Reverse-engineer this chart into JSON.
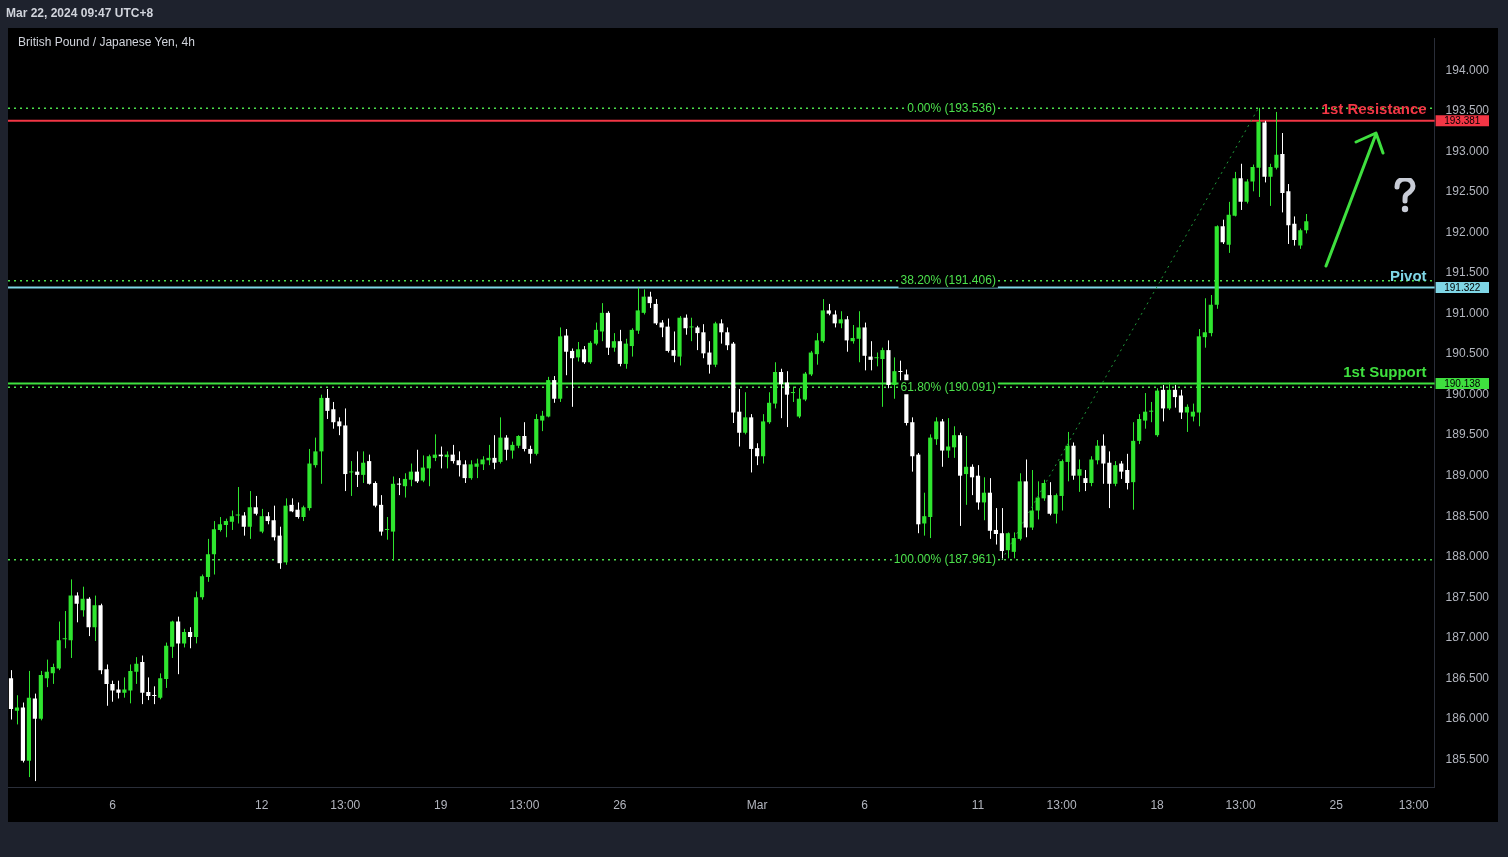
{
  "chart_data": {
    "type": "candlestick",
    "title": "British Pound / Japanese Yen, 4h",
    "subtitle": "Mar 22, 2024 09:47 UTC+8",
    "categories": [
      null,
      null,
      null,
      null,
      null,
      null,
      null,
      null,
      null,
      null,
      null,
      null,
      null,
      null,
      null,
      null,
      null,
      "6",
      null,
      null,
      null,
      null,
      null,
      null,
      null,
      null,
      null,
      null,
      null,
      null,
      null,
      null,
      null,
      null,
      null,
      null,
      null,
      null,
      null,
      null,
      null,
      null,
      "12",
      null,
      null,
      null,
      null,
      null,
      null,
      null,
      null,
      null,
      null,
      null,
      null,
      null,
      "13:00",
      null,
      null,
      null,
      null,
      null,
      null,
      null,
      null,
      null,
      null,
      null,
      null,
      null,
      null,
      null,
      "19",
      null,
      null,
      null,
      null,
      null,
      null,
      null,
      null,
      null,
      null,
      null,
      null,
      null,
      "13:00",
      null,
      null,
      null,
      null,
      null,
      null,
      null,
      null,
      null,
      null,
      null,
      null,
      null,
      null,
      null,
      "26",
      null,
      null,
      null,
      null,
      null,
      null,
      null,
      null,
      null,
      null,
      null,
      null,
      null,
      null,
      null,
      null,
      null,
      null,
      null,
      null,
      null,
      null,
      "Mar",
      null,
      null,
      null,
      null,
      null,
      null,
      null,
      null,
      null,
      null,
      null,
      null,
      null,
      null,
      null,
      null,
      null,
      "6",
      null,
      null,
      null,
      null,
      null,
      null,
      null,
      null,
      null,
      null,
      null,
      null,
      null,
      null,
      null,
      null,
      null,
      null,
      "11",
      null,
      null,
      null,
      null,
      null,
      null,
      null,
      null,
      null,
      null,
      null,
      null,
      null,
      "13:00",
      null,
      null,
      null,
      null,
      null,
      null,
      null,
      null,
      null,
      null,
      null,
      null,
      null,
      null,
      null,
      "18",
      null,
      null,
      null,
      null,
      null,
      null,
      null,
      null,
      null,
      null,
      null,
      null,
      null,
      "13:00",
      null,
      null,
      null,
      null,
      null,
      null,
      null,
      null,
      null,
      null,
      null,
      null,
      null,
      null,
      null,
      "25",
      null,
      null,
      null,
      null,
      null,
      null,
      null,
      null,
      null,
      null,
      null,
      null,
      "13:00",
      null,
      null,
      null
    ],
    "annotations": [
      "193.381",
      "191.322",
      "190.138"
    ],
    "colors": [
      "#ffffff",
      "#2fe52f",
      "#ffffff",
      "#2fe52f",
      "#ffffff",
      "#2fe52f",
      "#2fe52f",
      "#2fe52f",
      "#2fe52f",
      "#2fe52f",
      "#2fe52f",
      "#ffffff",
      "#2fe52f",
      "#ffffff",
      "#2fe52f",
      "#ffffff",
      "#ffffff",
      "#ffffff",
      "#ffffff",
      "#2fe52f",
      "#2fe52f",
      "#2fe52f",
      "#ffffff",
      "#ffffff",
      "#ffffff",
      "#2fe52f",
      "#2fe52f",
      "#2fe52f",
      "#ffffff",
      "#2fe52f",
      "#ffffff",
      "#2fe52f",
      "#2fe52f",
      "#2fe52f",
      "#2fe52f",
      "#2fe52f",
      "#2fe52f",
      "#2fe52f",
      "#2fe52f",
      "#ffffff",
      "#2fe52f",
      "#ffffff",
      "#2fe52f",
      "#ffffff",
      "#ffffff",
      "#ffffff",
      "#2fe52f",
      "#ffffff",
      "#ffffff",
      "#2fe52f",
      "#2fe52f",
      "#2fe52f",
      "#2fe52f",
      "#ffffff",
      "#ffffff",
      "#ffffff",
      "#ffffff",
      "#2fe52f",
      "#ffffff",
      "#2fe52f",
      "#ffffff",
      "#ffffff",
      "#ffffff",
      "#2fe52f",
      "#2fe52f",
      "#ffffff",
      "#2fe52f",
      "#2fe52f",
      "#ffffff",
      "#2fe52f",
      "#2fe52f",
      "#2fe52f",
      "#ffffff",
      "#2fe52f",
      "#ffffff",
      "#ffffff",
      "#ffffff",
      "#2fe52f",
      "#2fe52f",
      "#2fe52f",
      "#2fe52f",
      "#ffffff",
      "#2fe52f",
      "#ffffff",
      "#2fe52f",
      "#2fe52f",
      "#ffffff",
      "#ffffff",
      "#2fe52f",
      "#2fe52f",
      "#2fe52f",
      "#ffffff",
      "#2fe52f",
      "#ffffff",
      "#ffffff",
      "#2fe52f",
      "#ffffff",
      "#2fe52f",
      "#2fe52f",
      "#2fe52f",
      "#ffffff",
      "#2fe52f",
      "#ffffff",
      "#2fe52f",
      "#2fe52f",
      "#2fe52f",
      "#2fe52f",
      "#ffffff",
      "#ffffff",
      "#ffffff",
      "#ffffff",
      "#ffffff",
      "#2fe52f",
      "#ffffff",
      "#2fe52f",
      "#ffffff",
      "#ffffff",
      "#ffffff",
      "#2fe52f",
      "#ffffff",
      "#ffffff",
      "#ffffff",
      "#ffffff",
      "#2fe52f",
      "#ffffff",
      "#ffffff",
      "#2fe52f",
      "#2fe52f",
      "#2fe52f",
      "#ffffff",
      "#ffffff",
      "#2fe52f",
      "#2fe52f",
      "#2fe52f",
      "#2fe52f",
      "#2fe52f",
      "#2fe52f",
      "#ffffff",
      "#ffffff",
      "#2fe52f",
      "#ffffff",
      "#2fe52f",
      "#2fe52f",
      "#ffffff",
      "#ffffff",
      "#2fe52f",
      "#2fe52f",
      "#ffffff",
      "#2fe52f",
      "#ffffff",
      "#ffffff",
      "#ffffff",
      "#ffffff",
      "#2fe52f",
      "#2fe52f",
      "#2fe52f",
      "#ffffff",
      "#2fe52f",
      "#2fe52f",
      "#ffffff",
      "#2fe52f",
      "#ffffff",
      "#ffffff",
      "#2fe52f",
      "#ffffff",
      "#ffffff",
      "#ffffff",
      "#2fe52f",
      "#2fe52f",
      "#2fe52f",
      "#ffffff",
      "#2fe52f",
      "#2fe52f",
      "#2fe52f",
      "#ffffff",
      "#2fe52f",
      "#2fe52f",
      "#2fe52f",
      "#ffffff",
      "#2fe52f",
      "#ffffff",
      "#2fe52f",
      "#2fe52f",
      "#ffffff",
      "#ffffff",
      "#2fe52f",
      "#ffffff",
      "#ffffff",
      "#2fe52f",
      "#2fe52f",
      "#2fe52f",
      "#2fe52f",
      "#2fe52f",
      "#ffffff",
      "#2fe52f",
      "#ffffff",
      "#ffffff",
      "#2fe52f",
      "#2fe52f",
      "#2fe52f",
      "#2fe52f",
      "#2fe52f",
      "#2fe52f",
      "#ffffff",
      "#2fe52f",
      "#2fe52f",
      "#ffffff",
      "#2fe52f",
      "#2fe52f",
      "#2fe52f",
      "#ffffff",
      "#2fe52f",
      "#2fe52f",
      "#ffffff",
      "#ffffff",
      "#ffffff",
      "#2fe52f",
      "#2fe52f",
      null,
      null,
      null,
      null,
      null,
      null,
      null,
      null,
      null,
      null,
      null,
      null,
      null,
      null,
      null,
      null,
      null,
      null,
      null,
      null,
      null
    ],
    "ohlc": [
      [
        186.5,
        186.6,
        185.99,
        186.12
      ],
      [
        186.1,
        186.29,
        185.93,
        186.14
      ],
      [
        186.14,
        186.2,
        185.46,
        185.48
      ],
      [
        185.48,
        186.59,
        185.28,
        186.26
      ],
      [
        186.25,
        186.31,
        185.23,
        186.0
      ],
      [
        186.0,
        186.59,
        185.98,
        186.54
      ],
      [
        186.5,
        186.73,
        186.39,
        186.58
      ],
      [
        186.56,
        186.68,
        186.43,
        186.64
      ],
      [
        186.62,
        187.2,
        186.6,
        186.97
      ],
      [
        186.98,
        187.33,
        186.87,
        186.99
      ],
      [
        186.97,
        187.72,
        186.75,
        187.52
      ],
      [
        187.52,
        187.56,
        187.19,
        187.42
      ],
      [
        187.34,
        187.63,
        187.26,
        187.48
      ],
      [
        187.48,
        187.5,
        187.02,
        187.13
      ],
      [
        187.13,
        187.52,
        186.96,
        187.4
      ],
      [
        187.4,
        187.42,
        186.55,
        186.6
      ],
      [
        186.61,
        186.67,
        186.16,
        186.43
      ],
      [
        186.43,
        186.47,
        186.21,
        186.35
      ],
      [
        186.36,
        186.47,
        186.25,
        186.32
      ],
      [
        186.32,
        186.51,
        186.26,
        186.36
      ],
      [
        186.35,
        186.67,
        186.19,
        186.59
      ],
      [
        186.58,
        186.76,
        186.43,
        186.68
      ],
      [
        186.7,
        186.78,
        186.18,
        186.32
      ],
      [
        186.33,
        186.51,
        186.23,
        186.28
      ],
      [
        186.29,
        186.4,
        186.18,
        186.28
      ],
      [
        186.26,
        186.56,
        186.24,
        186.5
      ],
      [
        186.49,
        186.94,
        186.38,
        186.9
      ],
      [
        186.89,
        187.21,
        186.75,
        187.2
      ],
      [
        187.2,
        187.26,
        186.55,
        186.93
      ],
      [
        186.93,
        187.11,
        186.88,
        187.07
      ],
      [
        187.07,
        187.13,
        186.87,
        187.01
      ],
      [
        187.01,
        187.57,
        186.93,
        187.5
      ],
      [
        187.5,
        187.78,
        187.47,
        187.76
      ],
      [
        187.75,
        188.22,
        187.69,
        188.03
      ],
      [
        188.03,
        188.44,
        187.78,
        188.34
      ],
      [
        188.33,
        188.49,
        188.31,
        188.4
      ],
      [
        188.39,
        188.47,
        188.24,
        188.44
      ],
      [
        188.43,
        188.57,
        188.33,
        188.5
      ],
      [
        188.51,
        188.86,
        188.41,
        188.52
      ],
      [
        188.51,
        188.55,
        188.26,
        188.37
      ],
      [
        188.37,
        188.81,
        188.22,
        188.61
      ],
      [
        188.61,
        188.75,
        188.51,
        188.53
      ],
      [
        188.31,
        188.59,
        188.29,
        188.5
      ],
      [
        188.5,
        188.55,
        188.4,
        188.44
      ],
      [
        188.45,
        188.63,
        188.2,
        188.24
      ],
      [
        188.26,
        188.37,
        187.85,
        187.92
      ],
      [
        187.93,
        188.72,
        187.9,
        188.63
      ],
      [
        188.64,
        188.72,
        188.55,
        188.56
      ],
      [
        188.58,
        188.67,
        188.47,
        188.49
      ],
      [
        188.49,
        188.63,
        188.44,
        188.61
      ],
      [
        188.6,
        189.33,
        188.57,
        189.15
      ],
      [
        189.13,
        189.47,
        189.1,
        189.3
      ],
      [
        189.3,
        190.0,
        188.9,
        189.96
      ],
      [
        189.96,
        190.07,
        189.7,
        189.8
      ],
      [
        189.82,
        189.91,
        189.58,
        189.66
      ],
      [
        189.67,
        189.72,
        189.5,
        189.61
      ],
      [
        189.62,
        189.83,
        188.81,
        189.02
      ],
      [
        189.04,
        189.18,
        188.75,
        189.05
      ],
      [
        189.05,
        189.3,
        188.86,
        189.01
      ],
      [
        189.01,
        189.3,
        188.91,
        189.16
      ],
      [
        189.18,
        189.26,
        188.89,
        188.9
      ],
      [
        188.91,
        188.93,
        188.61,
        188.63
      ],
      [
        188.64,
        188.76,
        188.26,
        188.31
      ],
      [
        188.33,
        188.49,
        188.21,
        188.34
      ],
      [
        188.31,
        188.99,
        187.95,
        188.9
      ],
      [
        188.9,
        188.97,
        188.76,
        188.89
      ],
      [
        188.87,
        189.03,
        188.73,
        188.96
      ],
      [
        188.95,
        189.15,
        188.87,
        189.05
      ],
      [
        189.05,
        189.32,
        188.91,
        188.93
      ],
      [
        188.94,
        189.25,
        188.92,
        189.1
      ],
      [
        189.09,
        189.26,
        188.87,
        189.24
      ],
      [
        189.22,
        189.51,
        189.18,
        189.26
      ],
      [
        189.26,
        189.36,
        189.09,
        189.24
      ],
      [
        189.23,
        189.3,
        189.09,
        189.26
      ],
      [
        189.26,
        189.38,
        189.15,
        189.18
      ],
      [
        189.19,
        189.3,
        188.99,
        189.13
      ],
      [
        189.14,
        189.19,
        188.91,
        188.97
      ],
      [
        188.97,
        189.19,
        188.95,
        189.14
      ],
      [
        189.11,
        189.21,
        188.97,
        189.15
      ],
      [
        189.14,
        189.24,
        189.07,
        189.2
      ],
      [
        189.19,
        189.38,
        189.13,
        189.22
      ],
      [
        189.22,
        189.5,
        189.08,
        189.16
      ],
      [
        189.17,
        189.72,
        189.15,
        189.47
      ],
      [
        189.47,
        189.5,
        189.19,
        189.32
      ],
      [
        189.31,
        189.42,
        189.21,
        189.38
      ],
      [
        189.37,
        189.5,
        189.34,
        189.49
      ],
      [
        189.49,
        189.66,
        189.3,
        189.33
      ],
      [
        189.33,
        189.37,
        189.15,
        189.27
      ],
      [
        189.27,
        189.76,
        189.25,
        189.7
      ],
      [
        189.68,
        189.8,
        189.55,
        189.74
      ],
      [
        189.73,
        190.22,
        189.72,
        190.18
      ],
      [
        190.18,
        190.23,
        189.9,
        189.95
      ],
      [
        189.95,
        190.83,
        189.91,
        190.72
      ],
      [
        190.73,
        190.81,
        190.24,
        190.53
      ],
      [
        190.54,
        190.57,
        189.85,
        190.45
      ],
      [
        190.46,
        190.65,
        190.41,
        190.56
      ],
      [
        190.56,
        190.6,
        190.38,
        190.4
      ],
      [
        190.4,
        190.66,
        190.38,
        190.64
      ],
      [
        190.63,
        190.89,
        190.61,
        190.8
      ],
      [
        190.78,
        191.13,
        190.66,
        191.01
      ],
      [
        191.01,
        191.03,
        190.49,
        190.58
      ],
      [
        190.58,
        190.76,
        190.53,
        190.66
      ],
      [
        190.66,
        190.8,
        190.35,
        190.38
      ],
      [
        190.38,
        190.69,
        190.32,
        190.63
      ],
      [
        190.6,
        190.82,
        190.47,
        190.8
      ],
      [
        190.79,
        191.32,
        190.75,
        191.04
      ],
      [
        191.01,
        191.3,
        190.99,
        191.21
      ],
      [
        191.21,
        191.27,
        191.07,
        191.13
      ],
      [
        191.12,
        191.18,
        190.86,
        190.88
      ],
      [
        190.89,
        190.92,
        190.71,
        190.83
      ],
      [
        190.84,
        190.94,
        190.52,
        190.54
      ],
      [
        190.55,
        190.78,
        190.4,
        190.48
      ],
      [
        190.47,
        190.97,
        190.36,
        190.95
      ],
      [
        190.95,
        190.99,
        190.74,
        190.82
      ],
      [
        190.83,
        190.95,
        190.66,
        190.84
      ],
      [
        190.83,
        190.85,
        190.55,
        190.76
      ],
      [
        190.77,
        190.87,
        190.45,
        190.51
      ],
      [
        190.52,
        190.66,
        190.26,
        190.37
      ],
      [
        190.37,
        190.9,
        190.34,
        190.88
      ],
      [
        190.88,
        190.93,
        190.63,
        190.77
      ],
      [
        190.77,
        190.83,
        190.55,
        190.61
      ],
      [
        190.63,
        190.65,
        189.65,
        189.78
      ],
      [
        189.79,
        190.07,
        189.36,
        189.53
      ],
      [
        189.53,
        190.03,
        189.51,
        189.72
      ],
      [
        189.72,
        189.76,
        189.04,
        189.33
      ],
      [
        189.34,
        189.4,
        189.13,
        189.24
      ],
      [
        189.24,
        189.76,
        189.15,
        189.67
      ],
      [
        189.66,
        190.03,
        189.64,
        189.9
      ],
      [
        189.89,
        190.4,
        189.83,
        190.28
      ],
      [
        190.28,
        190.32,
        189.71,
        190.13
      ],
      [
        190.15,
        190.29,
        189.6,
        190.0
      ],
      [
        190.02,
        190.1,
        189.91,
        190.03
      ],
      [
        189.73,
        190.08,
        189.71,
        189.95
      ],
      [
        189.94,
        190.28,
        189.92,
        190.26
      ],
      [
        190.25,
        190.54,
        190.23,
        190.52
      ],
      [
        190.5,
        190.76,
        190.37,
        190.67
      ],
      [
        190.66,
        191.18,
        190.64,
        191.04
      ],
      [
        191.04,
        191.12,
        190.98,
        191.0
      ],
      [
        190.99,
        191.04,
        190.83,
        190.88
      ],
      [
        190.88,
        191.03,
        190.82,
        190.93
      ],
      [
        190.93,
        190.97,
        190.53,
        190.67
      ],
      [
        190.66,
        190.86,
        190.63,
        190.7
      ],
      [
        190.69,
        191.03,
        190.4,
        190.83
      ],
      [
        190.83,
        190.89,
        190.3,
        190.48
      ],
      [
        190.47,
        190.66,
        190.3,
        190.43
      ],
      [
        190.45,
        190.52,
        190.35,
        190.46
      ],
      [
        190.44,
        190.58,
        189.85,
        190.55
      ],
      [
        190.55,
        190.67,
        190.08,
        190.12
      ],
      [
        190.12,
        190.46,
        189.95,
        190.29
      ],
      [
        190.29,
        190.42,
        190.15,
        190.28
      ],
      [
        190.25,
        190.31,
        189.62,
        189.65
      ],
      [
        189.66,
        189.72,
        189.05,
        189.24
      ],
      [
        189.26,
        189.28,
        188.29,
        188.4
      ],
      [
        188.41,
        188.79,
        188.26,
        188.5
      ],
      [
        188.49,
        189.51,
        188.23,
        189.47
      ],
      [
        189.45,
        189.72,
        189.38,
        189.67
      ],
      [
        189.67,
        189.7,
        189.11,
        189.31
      ],
      [
        189.31,
        189.71,
        189.22,
        189.36
      ],
      [
        189.35,
        189.61,
        189.22,
        189.5
      ],
      [
        189.5,
        189.53,
        188.38,
        189.0
      ],
      [
        189.02,
        189.49,
        188.64,
        189.11
      ],
      [
        189.11,
        189.14,
        188.76,
        188.98
      ],
      [
        189.0,
        189.13,
        188.58,
        188.67
      ],
      [
        188.67,
        188.98,
        188.45,
        188.79
      ],
      [
        188.79,
        188.97,
        188.22,
        188.32
      ],
      [
        188.33,
        188.6,
        188.15,
        188.28
      ],
      [
        188.29,
        188.6,
        187.96,
        188.07
      ],
      [
        188.08,
        188.3,
        187.98,
        188.29
      ],
      [
        188.06,
        188.3,
        187.98,
        188.23
      ],
      [
        188.22,
        189.03,
        188.2,
        188.93
      ],
      [
        188.93,
        189.2,
        188.24,
        188.36
      ],
      [
        188.36,
        189.07,
        188.33,
        188.57
      ],
      [
        188.57,
        188.93,
        188.46,
        188.73
      ],
      [
        188.72,
        188.95,
        188.69,
        188.91
      ],
      [
        188.76,
        188.92,
        188.51,
        188.53
      ],
      [
        188.53,
        188.78,
        188.41,
        188.76
      ],
      [
        188.75,
        189.2,
        188.57,
        189.18
      ],
      [
        189.17,
        189.54,
        188.93,
        189.37
      ],
      [
        189.37,
        189.41,
        188.95,
        189.0
      ],
      [
        189.0,
        189.2,
        188.8,
        189.08
      ],
      [
        188.97,
        189.07,
        188.81,
        188.91
      ],
      [
        188.91,
        189.24,
        188.87,
        189.2
      ],
      [
        189.19,
        189.44,
        189.14,
        189.37
      ],
      [
        189.37,
        189.51,
        188.9,
        189.15
      ],
      [
        189.16,
        189.3,
        188.6,
        188.9
      ],
      [
        188.9,
        189.18,
        188.87,
        189.13
      ],
      [
        189.15,
        189.18,
        188.96,
        189.05
      ],
      [
        189.07,
        189.27,
        188.83,
        188.91
      ],
      [
        188.92,
        189.66,
        188.58,
        189.43
      ],
      [
        189.43,
        189.76,
        189.39,
        189.7
      ],
      [
        189.68,
        190.02,
        189.58,
        189.79
      ],
      [
        189.79,
        189.91,
        189.66,
        189.8
      ],
      [
        189.5,
        190.08,
        189.48,
        190.05
      ],
      [
        190.06,
        190.12,
        189.67,
        189.83
      ],
      [
        189.83,
        190.15,
        189.81,
        190.06
      ],
      [
        190.06,
        190.12,
        189.84,
        189.97
      ],
      [
        189.99,
        190.06,
        189.7,
        189.78
      ],
      [
        189.78,
        189.88,
        189.54,
        189.85
      ],
      [
        189.73,
        189.89,
        189.67,
        189.79
      ],
      [
        189.78,
        190.81,
        189.61,
        190.72
      ],
      [
        190.71,
        191.19,
        190.58,
        190.77
      ],
      [
        190.76,
        191.23,
        190.72,
        191.11
      ],
      [
        191.11,
        192.09,
        191.06,
        192.08
      ],
      [
        192.08,
        192.16,
        191.86,
        191.88
      ],
      [
        191.85,
        192.38,
        191.75,
        192.22
      ],
      [
        192.21,
        192.75,
        192.2,
        192.67
      ],
      [
        192.67,
        192.85,
        192.28,
        192.38
      ],
      [
        192.38,
        192.66,
        192.36,
        192.63
      ],
      [
        192.63,
        192.84,
        192.51,
        192.81
      ],
      [
        192.8,
        193.54,
        192.44,
        193.37
      ],
      [
        193.36,
        193.38,
        192.62,
        192.69
      ],
      [
        192.69,
        192.85,
        192.33,
        192.81
      ],
      [
        192.8,
        193.49,
        192.78,
        192.96
      ],
      [
        192.97,
        193.23,
        192.25,
        192.49
      ],
      [
        192.51,
        192.6,
        191.86,
        192.09
      ],
      [
        192.11,
        192.2,
        191.84,
        191.91
      ],
      [
        191.84,
        192.05,
        191.8,
        192.03
      ],
      [
        192.03,
        192.23,
        191.99,
        192.14
      ],
      null,
      null,
      null,
      null,
      null,
      null,
      null,
      null,
      null,
      null,
      null,
      null,
      null,
      null,
      null,
      null,
      null,
      null,
      null,
      null,
      null
    ],
    "series": [
      {
        "type": "line",
        "color": "#1f9a3a",
        "line_style": "dotted",
        "values": [
          null,
          null,
          null,
          null,
          null,
          null,
          null,
          null,
          null,
          null,
          null,
          null,
          null,
          null,
          null,
          null,
          null,
          null,
          null,
          null,
          null,
          null,
          null,
          null,
          null,
          null,
          null,
          null,
          null,
          null,
          null,
          null,
          null,
          null,
          null,
          null,
          null,
          null,
          null,
          null,
          null,
          null,
          null,
          null,
          null,
          null,
          null,
          null,
          null,
          null,
          null,
          null,
          null,
          null,
          null,
          null,
          null,
          null,
          null,
          null,
          null,
          null,
          null,
          null,
          null,
          null,
          null,
          null,
          null,
          null,
          null,
          null,
          null,
          null,
          null,
          null,
          null,
          null,
          null,
          null,
          null,
          null,
          null,
          null,
          null,
          null,
          null,
          null,
          null,
          null,
          null,
          null,
          null,
          null,
          null,
          null,
          null,
          null,
          null,
          null,
          null,
          null,
          null,
          null,
          null,
          null,
          null,
          null,
          null,
          null,
          null,
          null,
          null,
          null,
          null,
          null,
          null,
          null,
          null,
          null,
          null,
          null,
          null,
          null,
          null,
          null,
          null,
          null,
          null,
          null,
          null,
          null,
          null,
          null,
          null,
          null,
          null,
          null,
          null,
          null,
          null,
          null,
          null,
          null,
          null,
          null,
          null,
          null,
          null,
          null,
          null,
          null,
          null,
          null,
          null,
          null,
          null,
          null,
          null,
          null,
          null,
          null,
          null,
          null,
          null,
          null,
          187.96,
          null,
          null,
          null,
          null,
          null,
          null,
          null,
          null,
          null,
          null,
          null,
          null,
          null,
          null,
          null,
          null,
          null,
          null,
          null,
          null,
          null,
          null,
          null,
          null,
          null,
          null,
          null,
          null,
          null,
          null,
          null,
          null,
          null,
          null,
          null,
          null,
          null,
          null,
          null,
          null,
          null,
          null,
          193.54,
          null,
          null,
          null,
          null,
          null,
          null,
          null,
          null,
          null,
          null,
          null,
          null,
          null,
          null,
          null,
          null,
          null,
          null,
          null,
          null,
          null,
          null,
          null,
          null,
          null,
          null,
          null,
          null,
          null
        ]
      }
    ],
    "ylim": [
      185.15,
      194.4
    ],
    "yticks": [
      {
        "value": 185.5,
        "label": "185.500"
      },
      {
        "value": 186,
        "label": "186.000"
      },
      {
        "value": 186.5,
        "label": "186.500"
      },
      {
        "value": 187,
        "label": "187.000"
      },
      {
        "value": 187.5,
        "label": "187.500"
      },
      {
        "value": 188,
        "label": "188.000"
      },
      {
        "value": 188.5,
        "label": "188.500"
      },
      {
        "value": 189,
        "label": "189.000"
      },
      {
        "value": 189.5,
        "label": "189.500"
      },
      {
        "value": 190,
        "label": "190.000"
      },
      {
        "value": 190.5,
        "label": "190.500"
      },
      {
        "value": 191,
        "label": "191.000"
      },
      {
        "value": 191.5,
        "label": "191.500"
      },
      {
        "value": 192,
        "label": "192.000"
      },
      {
        "value": 192.5,
        "label": "192.500"
      },
      {
        "value": 193,
        "label": "193.000"
      },
      {
        "value": 193.5,
        "label": "193.500"
      },
      {
        "value": 194,
        "label": "194.000"
      }
    ],
    "ref_lines": [
      {
        "axis": "y",
        "value": 193.536,
        "label": "0.00% (193.536)",
        "color": "#4ce04c",
        "line_style": "dotted"
      },
      {
        "axis": "y",
        "value": 191.406,
        "label": "38.20% (191.406)",
        "color": "#4ce04c",
        "line_style": "dotted"
      },
      {
        "axis": "y",
        "value": 190.091,
        "label": "61.80% (190.091)",
        "color": "#4ce04c",
        "line_style": "dotted"
      },
      {
        "axis": "y",
        "value": 187.961,
        "label": "100.00% (187.961)",
        "color": "#4ce04c",
        "line_style": "dotted"
      },
      {
        "axis": "y",
        "value": 193.381,
        "label": "1st Resistance",
        "color": "#f23645",
        "line_style": "solid"
      },
      {
        "axis": "y",
        "value": 191.322,
        "label": "Pivot",
        "color": "#7fd6e6",
        "line_style": "solid"
      },
      {
        "axis": "y",
        "value": 190.138,
        "label": "1st Support",
        "color": "#3fe03f",
        "line_style": "solid"
      }
    ]
  }
}
